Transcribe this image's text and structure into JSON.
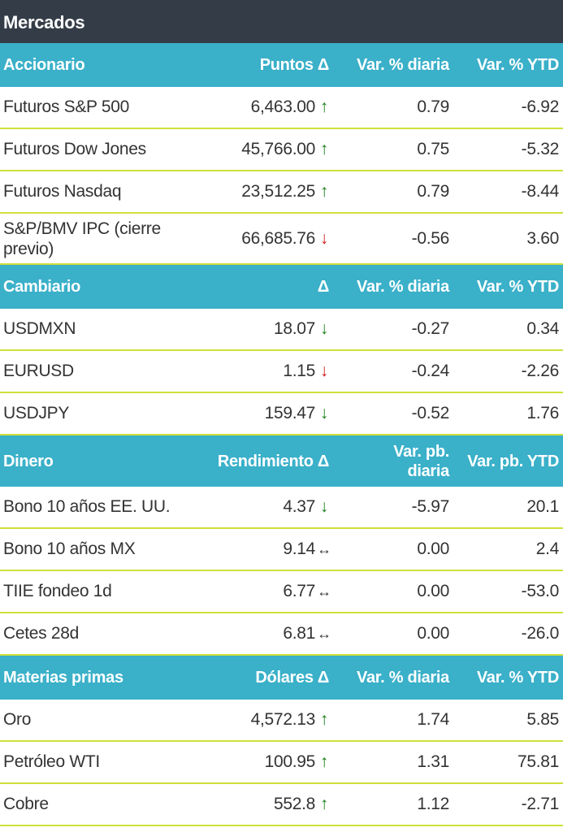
{
  "title": "Mercados",
  "colors": {
    "title_bg": "#343d47",
    "header_bg": "#3ab0c9",
    "divider": "#cfe03a",
    "up": "#1a7f1a",
    "down_red": "#d11a1a"
  },
  "sections": [
    {
      "header": [
        "Accionario",
        "Puntos Δ",
        "Var. % diaria",
        "Var. % YTD"
      ],
      "rows": [
        {
          "name": "Futuros S&P 500",
          "value": "6,463.00",
          "arrow": "up",
          "color": "green",
          "daily": "0.79",
          "ytd": "-6.92"
        },
        {
          "name": "Futuros Dow Jones",
          "value": "45,766.00",
          "arrow": "up",
          "color": "green",
          "daily": "0.75",
          "ytd": "-5.32"
        },
        {
          "name": "Futuros Nasdaq",
          "value": "23,512.25",
          "arrow": "up",
          "color": "green",
          "daily": "0.79",
          "ytd": "-8.44"
        },
        {
          "name": "S&P/BMV IPC (cierre previo)",
          "value": "66,685.76",
          "arrow": "down",
          "color": "red",
          "daily": "-0.56",
          "ytd": "3.60"
        }
      ]
    },
    {
      "header": [
        "Cambiario",
        "Δ",
        "Var. % diaria",
        "Var. % YTD"
      ],
      "rows": [
        {
          "name": "USDMXN",
          "value": "18.07",
          "arrow": "down",
          "color": "green",
          "daily": "-0.27",
          "ytd": "0.34"
        },
        {
          "name": "EURUSD",
          "value": "1.15",
          "arrow": "down",
          "color": "red",
          "daily": "-0.24",
          "ytd": "-2.26"
        },
        {
          "name": "USDJPY",
          "value": "159.47",
          "arrow": "down",
          "color": "green",
          "daily": "-0.52",
          "ytd": "1.76"
        }
      ]
    },
    {
      "header": [
        "Dinero",
        "Rendimiento Δ",
        "Var. pb. diaria",
        "Var. pb. YTD"
      ],
      "rows": [
        {
          "name": "Bono 10 años EE. UU.",
          "value": "4.37",
          "arrow": "down",
          "color": "green",
          "daily": "-5.97",
          "ytd": "20.1"
        },
        {
          "name": "Bono 10 años MX",
          "value": "9.14",
          "arrow": "flat",
          "color": "neutral",
          "daily": "0.00",
          "ytd": "2.4"
        },
        {
          "name": "TIIE fondeo 1d",
          "value": "6.77",
          "arrow": "flat",
          "color": "neutral",
          "daily": "0.00",
          "ytd": "-53.0"
        },
        {
          "name": "Cetes 28d",
          "value": "6.81",
          "arrow": "flat",
          "color": "neutral",
          "daily": "0.00",
          "ytd": "-26.0"
        }
      ]
    },
    {
      "header": [
        "Materias primas",
        "Dólares Δ",
        "Var. % diaria",
        "Var. % YTD"
      ],
      "rows": [
        {
          "name": "Oro",
          "value": "4,572.13",
          "arrow": "up",
          "color": "green",
          "daily": "1.74",
          "ytd": "5.85"
        },
        {
          "name": "Petróleo WTI",
          "value": "100.95",
          "arrow": "up",
          "color": "green",
          "daily": "1.31",
          "ytd": "75.81"
        },
        {
          "name": "Cobre",
          "value": "552.8",
          "arrow": "up",
          "color": "green",
          "daily": "1.12",
          "ytd": "-2.71"
        }
      ]
    }
  ]
}
